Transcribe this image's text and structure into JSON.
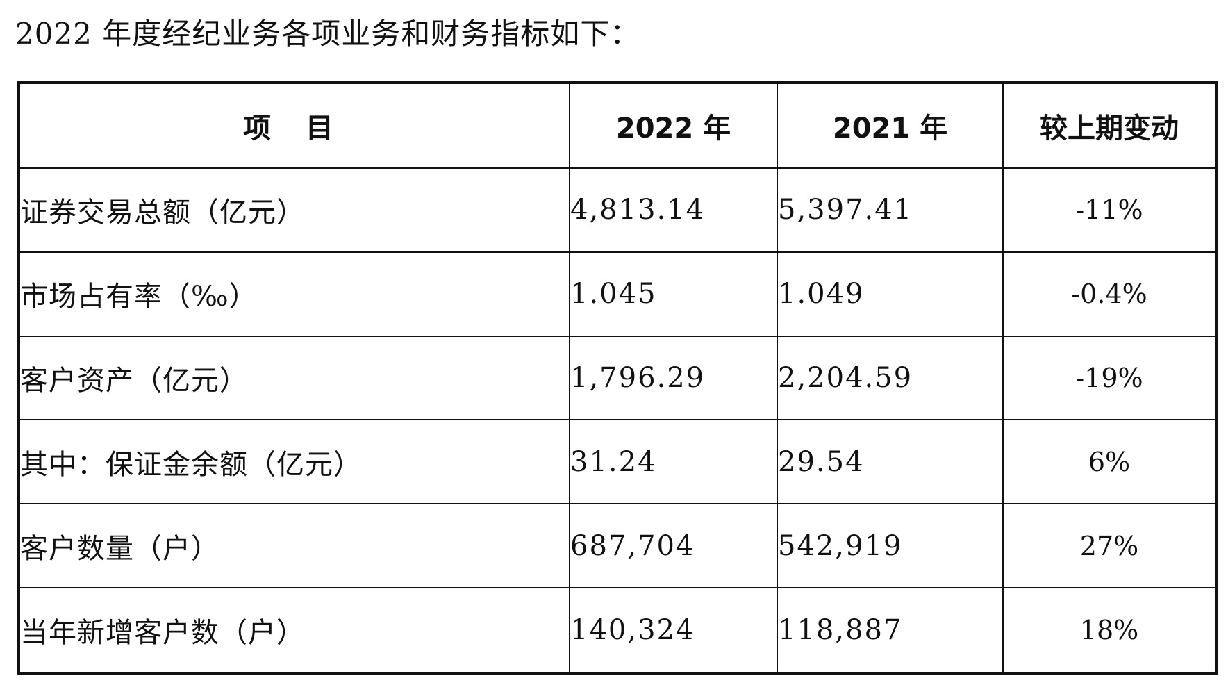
{
  "intro": "2022 年度经纪业务各项业务和财务指标如下：",
  "table": {
    "headers": [
      "项 目",
      "2022 年",
      "2021 年",
      "较上期变动"
    ],
    "rows": [
      {
        "item": "证券交易总额（亿元）",
        "y2022": "4,813.14",
        "y2021": "5,397.41",
        "change": "-11%"
      },
      {
        "item": "市场占有率（‰）",
        "y2022": "1.045",
        "y2021": "1.049",
        "change": "-0.4%"
      },
      {
        "item": "客户资产（亿元）",
        "y2022": "1,796.29",
        "y2021": "2,204.59",
        "change": "-19%"
      },
      {
        "item": "其中：保证金余额（亿元）",
        "y2022": "31.24",
        "y2021": "29.54",
        "change": "6%"
      },
      {
        "item": "客户数量（户）",
        "y2022": "687,704",
        "y2021": "542,919",
        "change": "27%"
      },
      {
        "item": "当年新增客户数（户）",
        "y2022": "140,324",
        "y2021": "118,887",
        "change": "18%"
      }
    ]
  }
}
